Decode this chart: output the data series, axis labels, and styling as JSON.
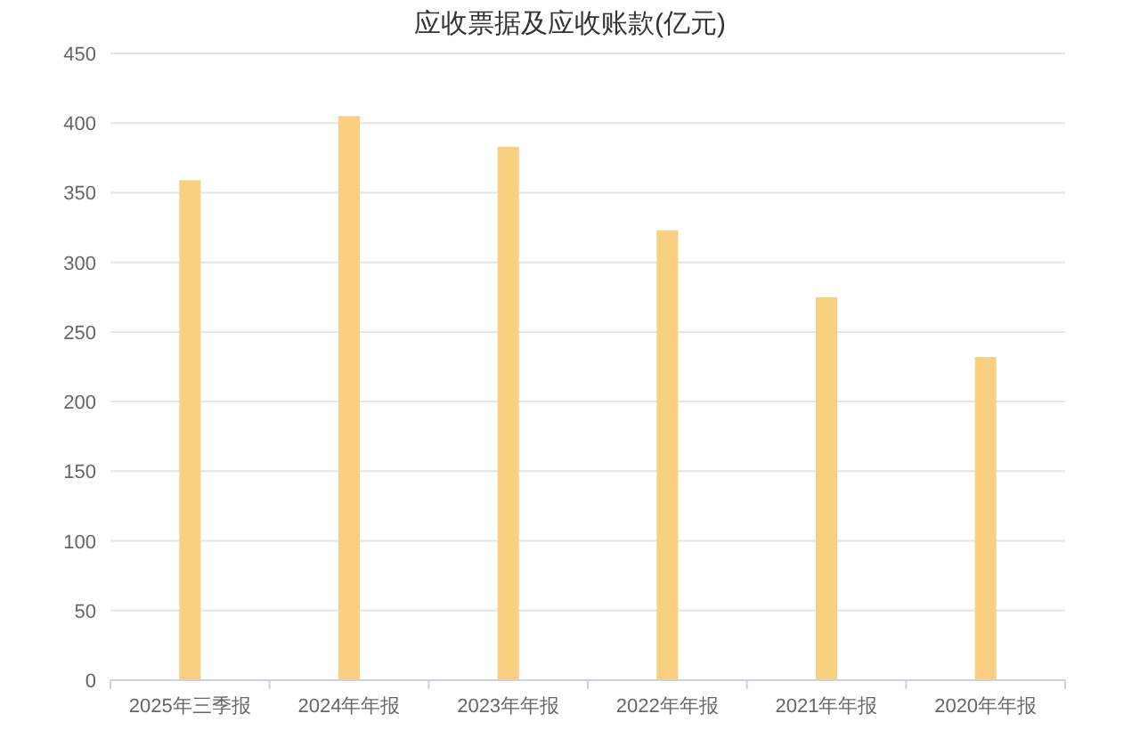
{
  "chart_data": {
    "type": "bar",
    "title": "应收票据及应收账款(亿元)",
    "categories": [
      "2025年三季报",
      "2024年年报",
      "2023年年报",
      "2022年年报",
      "2021年年报",
      "2020年年报"
    ],
    "values": [
      359,
      405,
      383,
      323,
      275,
      232
    ],
    "color": "#f9d080",
    "ylim": [
      0,
      450
    ],
    "yticks": [
      0,
      50,
      100,
      150,
      200,
      250,
      300,
      350,
      400,
      450
    ],
    "grid": "y"
  }
}
